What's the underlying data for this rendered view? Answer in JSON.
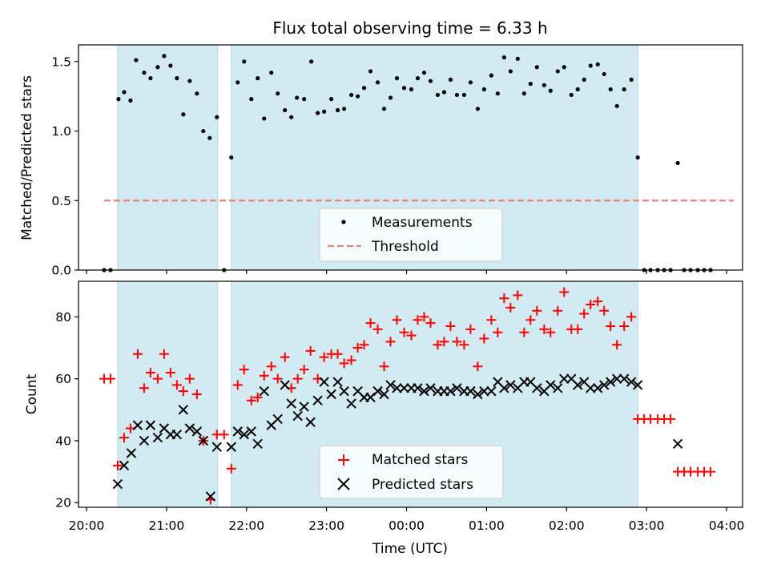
{
  "chart_data": {
    "type": "scatter",
    "title": "Flux total observing time = 6.33 h",
    "xlabel": "Time (UTC)",
    "x_ticks": [
      "20:00",
      "21:00",
      "22:00",
      "23:00",
      "00:00",
      "01:00",
      "02:00",
      "03:00",
      "04:00"
    ],
    "xlim_hours": [
      19.9,
      28.2
    ],
    "shaded_intervals_hours": [
      [
        20.39,
        21.64
      ],
      [
        21.81,
        26.89
      ]
    ],
    "colors": {
      "shade": "#add8e6",
      "measurements": "#000000",
      "threshold": "#f08080",
      "matched": "#ff0000",
      "predicted": "#000000"
    },
    "panels": [
      {
        "ylabel": "Matched/Predicted stars",
        "ylim": [
          0,
          1.62
        ],
        "y_ticks": [
          "0.0",
          "0.5",
          "1.0",
          "1.5"
        ],
        "legend_position": "lower-center",
        "series": [
          {
            "name": "Measurements",
            "type": "scatter",
            "x": [
              20.22,
              20.3,
              20.4,
              20.47,
              20.55,
              20.62,
              20.72,
              20.8,
              20.89,
              20.97,
              21.05,
              21.13,
              21.21,
              21.29,
              21.38,
              21.46,
              21.54,
              21.63,
              21.72,
              21.81,
              21.89,
              21.97,
              22.06,
              22.14,
              22.22,
              22.31,
              22.39,
              22.48,
              22.56,
              22.63,
              22.72,
              22.81,
              22.89,
              22.97,
              23.06,
              23.14,
              23.22,
              23.31,
              23.39,
              23.47,
              23.55,
              23.64,
              23.72,
              23.8,
              23.88,
              23.97,
              24.06,
              24.14,
              24.22,
              24.3,
              24.39,
              24.47,
              24.55,
              24.63,
              24.72,
              24.8,
              24.89,
              24.97,
              25.06,
              25.14,
              25.22,
              25.3,
              25.39,
              25.47,
              25.55,
              25.63,
              25.72,
              25.8,
              25.89,
              25.97,
              26.06,
              26.14,
              26.22,
              26.3,
              26.39,
              26.47,
              26.55,
              26.63,
              26.72,
              26.81,
              26.89,
              26.97,
              27.05,
              27.14,
              27.22,
              27.3,
              27.39,
              27.47,
              27.55,
              27.64,
              27.72,
              27.8
            ],
            "y": [
              0.0,
              0.0,
              1.23,
              1.28,
              1.22,
              1.51,
              1.42,
              1.38,
              1.46,
              1.54,
              1.47,
              1.38,
              1.12,
              1.36,
              1.27,
              1.0,
              0.95,
              1.1,
              0.0,
              0.81,
              1.35,
              1.5,
              1.23,
              1.38,
              1.09,
              1.42,
              1.27,
              1.15,
              1.1,
              1.24,
              1.23,
              1.5,
              1.13,
              1.14,
              1.23,
              1.15,
              1.16,
              1.26,
              1.25,
              1.31,
              1.43,
              1.35,
              1.16,
              1.24,
              1.38,
              1.31,
              1.3,
              1.38,
              1.42,
              1.36,
              1.26,
              1.28,
              1.37,
              1.26,
              1.26,
              1.35,
              1.16,
              1.3,
              1.4,
              1.27,
              1.53,
              1.43,
              1.52,
              1.27,
              1.34,
              1.46,
              1.33,
              1.29,
              1.43,
              1.46,
              1.26,
              1.3,
              1.37,
              1.47,
              1.48,
              1.41,
              1.3,
              1.18,
              1.3,
              1.37,
              0.81,
              0.0,
              0.0,
              0.0,
              0.0,
              0.0,
              0.77,
              0.0,
              0.0,
              0.0,
              0.0,
              0.0
            ]
          },
          {
            "name": "Threshold",
            "type": "line",
            "x": [
              20.22,
              28.09
            ],
            "y": [
              0.5,
              0.5
            ]
          }
        ]
      },
      {
        "ylabel": "Count",
        "ylim": [
          18.5,
          91.5
        ],
        "y_ticks": [
          "20",
          "40",
          "60",
          "80"
        ],
        "legend_position": "lower-center",
        "series": [
          {
            "name": "Matched stars",
            "type": "scatter",
            "x": [
              20.22,
              20.3,
              20.39,
              20.47,
              20.55,
              20.64,
              20.72,
              20.8,
              20.89,
              20.97,
              21.05,
              21.13,
              21.21,
              21.29,
              21.38,
              21.46,
              21.55,
              21.63,
              21.72,
              21.81,
              21.89,
              21.97,
              22.06,
              22.14,
              22.22,
              22.31,
              22.39,
              22.48,
              22.56,
              22.64,
              22.72,
              22.8,
              22.89,
              22.97,
              23.06,
              23.14,
              23.22,
              23.31,
              23.39,
              23.47,
              23.55,
              23.64,
              23.72,
              23.8,
              23.88,
              23.97,
              24.06,
              24.14,
              24.22,
              24.3,
              24.39,
              24.47,
              24.55,
              24.63,
              24.72,
              24.8,
              24.89,
              24.97,
              25.06,
              25.14,
              25.22,
              25.3,
              25.39,
              25.47,
              25.55,
              25.63,
              25.72,
              25.8,
              25.89,
              25.97,
              26.06,
              26.14,
              26.22,
              26.3,
              26.39,
              26.47,
              26.55,
              26.63,
              26.72,
              26.81,
              26.89,
              26.97,
              27.05,
              27.14,
              27.22,
              27.3,
              27.39,
              27.47,
              27.55,
              27.64,
              27.72,
              27.8
            ],
            "y": [
              60,
              60,
              32,
              41,
              44,
              68,
              57,
              62,
              60,
              68,
              62,
              58,
              56,
              60,
              55,
              40,
              21,
              42,
              42,
              31,
              58,
              63,
              53,
              54,
              61,
              64,
              60,
              67,
              57,
              60,
              63,
              69,
              60,
              67,
              68,
              68,
              65,
              66,
              70,
              71,
              78,
              76,
              64,
              72,
              79,
              75,
              74,
              79,
              80,
              78,
              71,
              72,
              77,
              72,
              71,
              76,
              64,
              73,
              79,
              75,
              86,
              83,
              87,
              75,
              79,
              82,
              76,
              75,
              82,
              88,
              76,
              76,
              81,
              84,
              85,
              82,
              77,
              71,
              77,
              80,
              47,
              47,
              47,
              47,
              47,
              47,
              30,
              30,
              30,
              30,
              30,
              30
            ]
          },
          {
            "name": "Predicted stars",
            "type": "scatter",
            "x": [
              20.39,
              20.47,
              20.56,
              20.64,
              20.72,
              20.8,
              20.89,
              20.97,
              21.05,
              21.13,
              21.21,
              21.29,
              21.38,
              21.46,
              21.55,
              21.63,
              21.81,
              21.89,
              21.97,
              22.06,
              22.14,
              22.22,
              22.31,
              22.39,
              22.48,
              22.56,
              22.64,
              22.72,
              22.8,
              22.89,
              22.97,
              23.06,
              23.14,
              23.22,
              23.31,
              23.39,
              23.47,
              23.55,
              23.64,
              23.72,
              23.8,
              23.88,
              23.97,
              24.06,
              24.14,
              24.22,
              24.3,
              24.39,
              24.47,
              24.55,
              24.63,
              24.72,
              24.8,
              24.89,
              24.97,
              25.06,
              25.14,
              25.22,
              25.3,
              25.39,
              25.47,
              25.55,
              25.63,
              25.72,
              25.8,
              25.89,
              25.97,
              26.06,
              26.14,
              26.22,
              26.3,
              26.39,
              26.47,
              26.55,
              26.63,
              26.72,
              26.81,
              26.89,
              27.39
            ],
            "y": [
              26,
              32,
              36,
              45,
              40,
              45,
              41,
              44,
              42,
              42,
              50,
              44,
              43,
              40,
              22,
              38,
              38,
              43,
              42,
              43,
              39,
              56,
              45,
              47,
              58,
              52,
              48,
              51,
              46,
              53,
              59,
              55,
              59,
              56,
              52,
              56,
              54,
              54,
              56,
              55,
              58,
              57,
              57,
              57,
              57,
              56,
              57,
              56,
              56,
              56,
              57,
              56,
              56,
              55,
              56,
              56,
              59,
              57,
              58,
              57,
              59,
              59,
              57,
              56,
              58,
              57,
              60,
              60,
              58,
              59,
              57,
              57,
              58,
              59,
              60,
              60,
              59,
              58,
              39
            ]
          }
        ]
      }
    ]
  }
}
